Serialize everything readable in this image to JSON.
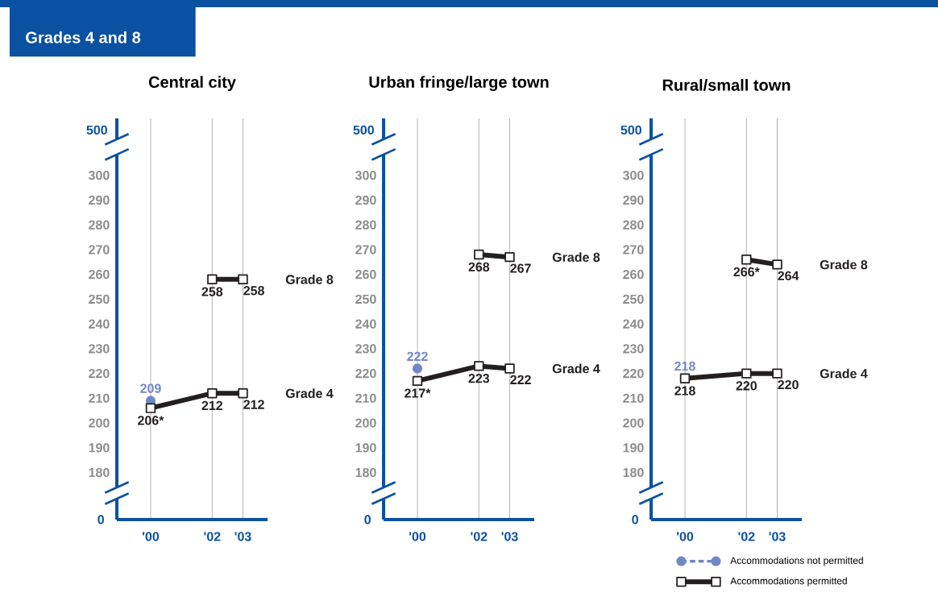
{
  "chart_data": [
    {
      "type": "line",
      "title": "Central city",
      "x": [
        2000,
        2002,
        2003
      ],
      "xlim": [
        1998.9,
        2003.8
      ],
      "ylim": [
        161,
        323
      ],
      "xticks": [
        {
          "value": 2000,
          "label": "'00"
        },
        {
          "value": 2002,
          "label": "'02"
        },
        {
          "value": 2003,
          "label": "'03"
        }
      ],
      "yticks": [
        180,
        190,
        200,
        210,
        220,
        230,
        240,
        250,
        260,
        270,
        280,
        290,
        300
      ],
      "grid": "x",
      "series": [
        {
          "color": "#7088c6",
          "marker": "circle",
          "line_style": "dashed",
          "x": [
            2000
          ],
          "values": [
            209
          ],
          "value_labels": [
            "209"
          ]
        },
        {
          "name": "Grade 8",
          "color": "#231f20",
          "marker": "square",
          "line_style": "solid",
          "x": [
            2002,
            2003
          ],
          "values": [
            258,
            258
          ],
          "value_labels": [
            "258",
            "258"
          ]
        },
        {
          "name": "Grade 4",
          "color": "#231f20",
          "marker": "square",
          "line_style": "solid",
          "values": [
            206,
            212,
            212
          ],
          "value_labels": [
            "206*",
            "212",
            "212"
          ]
        }
      ],
      "annotations": [
        "500",
        "0",
        "Grades 4 and 8"
      ]
    },
    {
      "type": "line",
      "title": "Urban fringe/large town",
      "x": [
        2000,
        2002,
        2003
      ],
      "xlim": [
        1998.9,
        2003.8
      ],
      "ylim": [
        161,
        323
      ],
      "xticks": [
        {
          "value": 2000,
          "label": "'00"
        },
        {
          "value": 2002,
          "label": "'02"
        },
        {
          "value": 2003,
          "label": "'03"
        }
      ],
      "yticks": [
        180,
        190,
        200,
        210,
        220,
        230,
        240,
        250,
        260,
        270,
        280,
        290,
        300
      ],
      "grid": "x",
      "series": [
        {
          "color": "#7088c6",
          "marker": "circle",
          "line_style": "dashed",
          "x": [
            2000
          ],
          "values": [
            222
          ],
          "value_labels": [
            "222"
          ]
        },
        {
          "name": "Grade 8",
          "color": "#231f20",
          "marker": "square",
          "line_style": "solid",
          "x": [
            2002,
            2003
          ],
          "values": [
            268,
            267
          ],
          "value_labels": [
            "268",
            "267"
          ]
        },
        {
          "name": "Grade 4",
          "color": "#231f20",
          "marker": "square",
          "line_style": "solid",
          "values": [
            217,
            223,
            222
          ],
          "value_labels": [
            "217*",
            "223",
            "222"
          ]
        }
      ],
      "annotations": [
        "500",
        "0"
      ]
    },
    {
      "type": "line",
      "title": "Rural/small town",
      "x": [
        2000,
        2002,
        2003
      ],
      "xlim": [
        1998.9,
        2003.8
      ],
      "ylim": [
        161,
        323
      ],
      "xticks": [
        {
          "value": 2000,
          "label": "'00"
        },
        {
          "value": 2002,
          "label": "'02"
        },
        {
          "value": 2003,
          "label": "'03"
        }
      ],
      "yticks": [
        180,
        190,
        200,
        210,
        220,
        230,
        240,
        250,
        260,
        270,
        280,
        290,
        300
      ],
      "grid": "x",
      "series": [
        {
          "color": "#7088c6",
          "marker": "circle",
          "line_style": "dashed",
          "x": [
            2000
          ],
          "values": [
            218
          ],
          "value_labels": [
            "218"
          ]
        },
        {
          "name": "Grade 8",
          "color": "#231f20",
          "marker": "square",
          "line_style": "solid",
          "x": [
            2002,
            2003
          ],
          "values": [
            266,
            264
          ],
          "value_labels": [
            "266*",
            "264"
          ]
        },
        {
          "name": "Grade 4",
          "color": "#231f20",
          "marker": "square",
          "line_style": "solid",
          "values": [
            218,
            220,
            220
          ],
          "value_labels": [
            "218",
            "220",
            "220"
          ]
        }
      ],
      "annotations": [
        "500",
        "0",
        "Accommodations not permitted",
        "Accommodations permitted"
      ]
    }
  ]
}
